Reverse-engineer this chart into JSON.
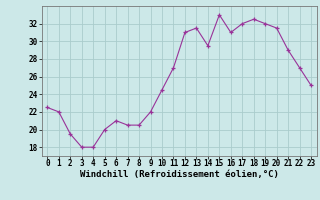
{
  "x": [
    0,
    1,
    2,
    3,
    4,
    5,
    6,
    7,
    8,
    9,
    10,
    11,
    12,
    13,
    14,
    15,
    16,
    17,
    18,
    19,
    20,
    21,
    22,
    23
  ],
  "y": [
    22.5,
    22.0,
    19.5,
    18.0,
    18.0,
    20.0,
    21.0,
    20.5,
    20.5,
    22.0,
    24.5,
    27.0,
    31.0,
    31.5,
    29.5,
    33.0,
    31.0,
    32.0,
    32.5,
    32.0,
    31.5,
    29.0,
    27.0,
    25.0
  ],
  "line_color": "#993399",
  "marker": "+",
  "bg_color": "#cce8e8",
  "grid_color": "#aacccc",
  "xlabel": "Windchill (Refroidissement éolien,°C)",
  "xlabel_fontsize": 6.5,
  "tick_fontsize": 5.5,
  "ylim": [
    17,
    34
  ],
  "yticks": [
    18,
    20,
    22,
    24,
    26,
    28,
    30,
    32
  ],
  "xlim": [
    -0.5,
    23.5
  ]
}
